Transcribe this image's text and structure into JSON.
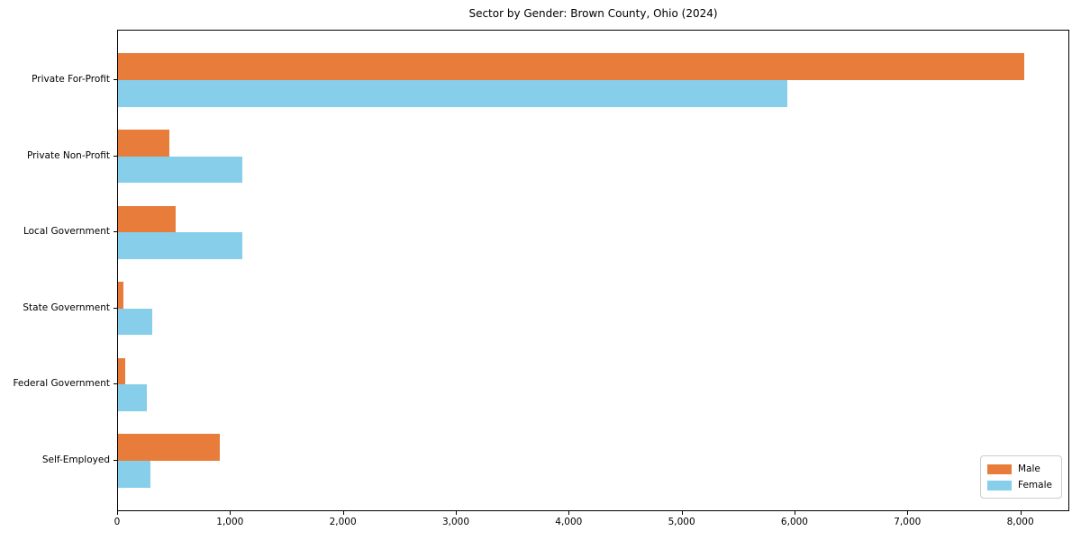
{
  "chart_data": {
    "type": "bar",
    "orientation": "horizontal",
    "title": "Sector by Gender: Brown County, Ohio (2024)",
    "categories": [
      "Private For-Profit",
      "Private Non-Profit",
      "Local Government",
      "State Government",
      "Federal Government",
      "Self-Employed"
    ],
    "series": [
      {
        "name": "Male",
        "color": "#e87d3b",
        "values": [
          8030,
          455,
          510,
          50,
          65,
          900
        ]
      },
      {
        "name": "Female",
        "color": "#87ceeb",
        "values": [
          5930,
          1100,
          1100,
          305,
          255,
          285
        ]
      }
    ],
    "xlabel": "",
    "ylabel": "",
    "xlim": [
      0,
      8434
    ],
    "xticks": [
      0,
      1000,
      2000,
      3000,
      4000,
      5000,
      6000,
      7000,
      8000
    ],
    "xtick_labels": [
      "0",
      "1,000",
      "2,000",
      "3,000",
      "4,000",
      "5,000",
      "6,000",
      "7,000",
      "8,000"
    ],
    "legend": {
      "entries": [
        "Male",
        "Female"
      ],
      "position": "lower right"
    },
    "grid": false,
    "background": "#ffffff",
    "spine_color": "#000000"
  }
}
